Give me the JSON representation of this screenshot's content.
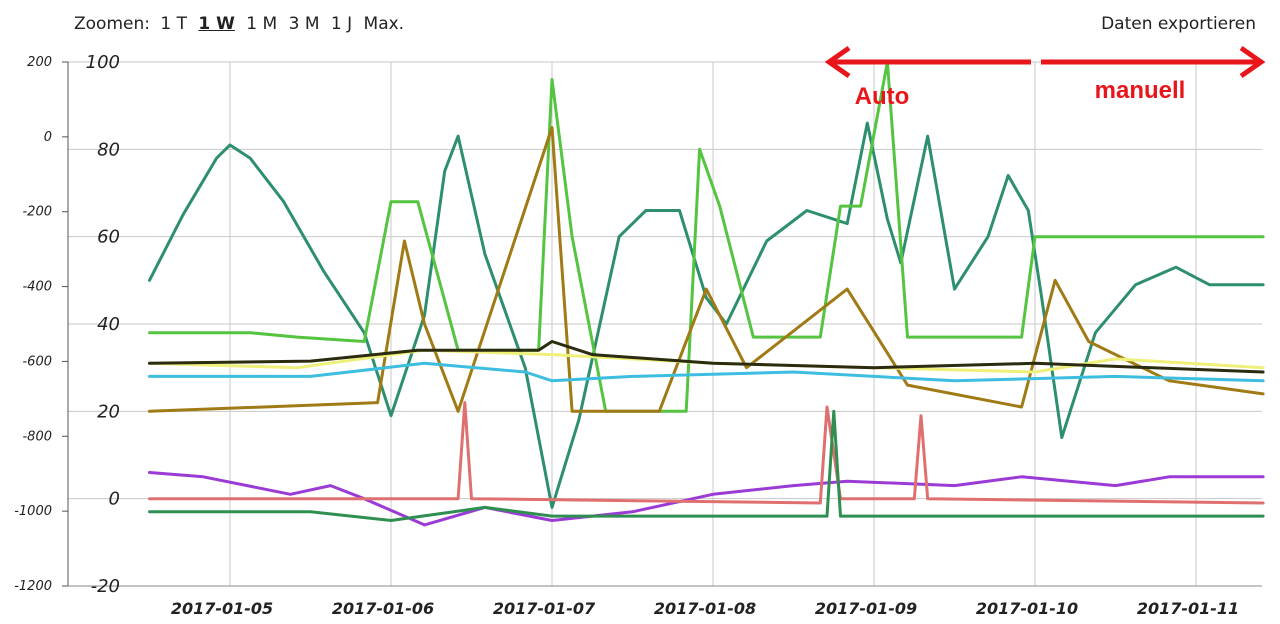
{
  "toolbar": {
    "zoom_label": "Zoomen:",
    "zoom_options": [
      "1 T",
      "1 W",
      "1 M",
      "3 M",
      "1 J",
      "Max."
    ],
    "active_zoom": "1 W",
    "export_label": "Daten exportieren"
  },
  "chart_data": {
    "type": "line",
    "grid": true,
    "left_axis": {
      "range": [
        -1200,
        200
      ],
      "ticks": [
        "200",
        "0",
        "-200",
        "-400",
        "-600",
        "-800",
        "-1000",
        "-1200"
      ]
    },
    "right_axis": {
      "range": [
        -20,
        100
      ],
      "ticks": [
        "100",
        "80",
        "60",
        "40",
        "20",
        "0",
        "-20"
      ]
    },
    "x_ticks": [
      "2017-01-05",
      "2017-01-06",
      "2017-01-07",
      "2017-01-08",
      "2017-01-09",
      "2017-01-10",
      "2017-01-11"
    ],
    "annotations": {
      "auto_label": "Auto",
      "manual_label": "manuell",
      "color": "#e8161b",
      "auto_range": [
        "2017-01-08T17:00",
        "2017-01-10T00:00"
      ],
      "manual_range": [
        "2017-01-10T00:00",
        "2017-01-11T10:00"
      ]
    },
    "series": [
      {
        "color": "#2e8f6e",
        "axis": "right",
        "points": [
          [
            "2017-01-04T12:00",
            50
          ],
          [
            "2017-01-04T17:00",
            65
          ],
          [
            "2017-01-04T22:00",
            78
          ],
          [
            "2017-01-05T00:00",
            81
          ],
          [
            "2017-01-05T03:00",
            78
          ],
          [
            "2017-01-05T08:00",
            68
          ],
          [
            "2017-01-05T14:00",
            52
          ],
          [
            "2017-01-05T20:00",
            38
          ],
          [
            "2017-01-06T00:00",
            19
          ],
          [
            "2017-01-06T05:00",
            42
          ],
          [
            "2017-01-06T08:00",
            75
          ],
          [
            "2017-01-06T10:00",
            83
          ],
          [
            "2017-01-06T14:00",
            56
          ],
          [
            "2017-01-06T20:00",
            30
          ],
          [
            "2017-01-07T00:00",
            -2
          ],
          [
            "2017-01-07T04:00",
            18
          ],
          [
            "2017-01-07T10:00",
            60
          ],
          [
            "2017-01-07T14:00",
            66
          ],
          [
            "2017-01-07T19:00",
            66
          ],
          [
            "2017-01-07T23:00",
            46
          ],
          [
            "2017-01-08T02:00",
            40
          ],
          [
            "2017-01-08T08:00",
            59
          ],
          [
            "2017-01-08T14:00",
            66
          ],
          [
            "2017-01-08T20:00",
            63
          ],
          [
            "2017-01-08T23:00",
            86
          ],
          [
            "2017-01-09T02:00",
            64
          ],
          [
            "2017-01-09T04:00",
            54
          ],
          [
            "2017-01-09T08:00",
            83
          ],
          [
            "2017-01-09T12:00",
            48
          ],
          [
            "2017-01-09T17:00",
            60
          ],
          [
            "2017-01-09T20:00",
            74
          ],
          [
            "2017-01-09T23:00",
            66
          ],
          [
            "2017-01-10T01:00",
            46
          ],
          [
            "2017-01-10T04:00",
            14
          ],
          [
            "2017-01-10T09:00",
            38
          ],
          [
            "2017-01-10T15:00",
            49
          ],
          [
            "2017-01-10T21:00",
            53
          ],
          [
            "2017-01-11T02:00",
            49
          ],
          [
            "2017-01-11T10:00",
            49
          ]
        ]
      },
      {
        "color": "#55c440",
        "axis": "right",
        "points": [
          [
            "2017-01-04T12:00",
            38
          ],
          [
            "2017-01-05T03:00",
            38
          ],
          [
            "2017-01-05T10:00",
            37
          ],
          [
            "2017-01-05T20:00",
            36
          ],
          [
            "2017-01-06T00:00",
            68
          ],
          [
            "2017-01-06T04:00",
            68
          ],
          [
            "2017-01-06T10:00",
            34
          ],
          [
            "2017-01-06T22:00",
            34
          ],
          [
            "2017-01-07T00:00",
            96
          ],
          [
            "2017-01-07T03:00",
            60
          ],
          [
            "2017-01-07T08:00",
            20
          ],
          [
            "2017-01-07T20:00",
            20
          ],
          [
            "2017-01-07T22:00",
            80
          ],
          [
            "2017-01-08T01:00",
            67
          ],
          [
            "2017-01-08T06:00",
            37
          ],
          [
            "2017-01-08T16:00",
            37
          ],
          [
            "2017-01-08T19:00",
            67
          ],
          [
            "2017-01-08T22:00",
            67
          ],
          [
            "2017-01-09T02:00",
            100
          ],
          [
            "2017-01-09T05:00",
            37
          ],
          [
            "2017-01-09T22:00",
            37
          ],
          [
            "2017-01-10T00:00",
            60
          ],
          [
            "2017-01-11T10:00",
            60
          ]
        ]
      },
      {
        "color": "#a07a14",
        "axis": "right",
        "points": [
          [
            "2017-01-04T12:00",
            20
          ],
          [
            "2017-01-05T22:00",
            22
          ],
          [
            "2017-01-06T02:00",
            59
          ],
          [
            "2017-01-06T05:00",
            40
          ],
          [
            "2017-01-06T10:00",
            20
          ],
          [
            "2017-01-07T00:00",
            85
          ],
          [
            "2017-01-07T03:00",
            20
          ],
          [
            "2017-01-07T16:00",
            20
          ],
          [
            "2017-01-07T23:00",
            48
          ],
          [
            "2017-01-08T05:00",
            30
          ],
          [
            "2017-01-08T20:00",
            48
          ],
          [
            "2017-01-09T05:00",
            26
          ],
          [
            "2017-01-09T22:00",
            21
          ],
          [
            "2017-01-10T03:00",
            50
          ],
          [
            "2017-01-10T08:00",
            36
          ],
          [
            "2017-01-10T20:00",
            27
          ],
          [
            "2017-01-11T10:00",
            24
          ]
        ]
      },
      {
        "color": "#eef07a",
        "axis": "right",
        "points": [
          [
            "2017-01-04T12:00",
            31
          ],
          [
            "2017-01-05T10:00",
            30
          ],
          [
            "2017-01-06T05:00",
            34
          ],
          [
            "2017-01-07T00:00",
            33
          ],
          [
            "2017-01-08T00:00",
            31
          ],
          [
            "2017-01-09T00:00",
            30
          ],
          [
            "2017-01-10T00:00",
            29
          ],
          [
            "2017-01-10T12:00",
            32
          ],
          [
            "2017-01-11T10:00",
            30
          ]
        ]
      },
      {
        "color": "#2b2b10",
        "axis": "right",
        "points": [
          [
            "2017-01-04T12:00",
            31
          ],
          [
            "2017-01-05T12:00",
            31.5
          ],
          [
            "2017-01-06T04:00",
            34
          ],
          [
            "2017-01-06T22:00",
            34
          ],
          [
            "2017-01-07T00:00",
            36
          ],
          [
            "2017-01-07T06:00",
            33
          ],
          [
            "2017-01-08T00:00",
            31
          ],
          [
            "2017-01-09T00:00",
            30
          ],
          [
            "2017-01-10T00:00",
            31
          ],
          [
            "2017-01-11T10:00",
            29
          ]
        ]
      },
      {
        "color": "#3dbde0",
        "axis": "right",
        "points": [
          [
            "2017-01-04T12:00",
            28
          ],
          [
            "2017-01-05T12:00",
            28
          ],
          [
            "2017-01-06T05:00",
            31
          ],
          [
            "2017-01-06T20:00",
            29
          ],
          [
            "2017-01-07T00:00",
            27
          ],
          [
            "2017-01-07T12:00",
            28
          ],
          [
            "2017-01-08T12:00",
            29
          ],
          [
            "2017-01-09T12:00",
            27
          ],
          [
            "2017-01-10T12:00",
            28
          ],
          [
            "2017-01-11T10:00",
            27
          ]
        ]
      },
      {
        "color": "#9b3bd6",
        "axis": "right",
        "points": [
          [
            "2017-01-04T12:00",
            6
          ],
          [
            "2017-01-04T20:00",
            5
          ],
          [
            "2017-01-05T09:00",
            1
          ],
          [
            "2017-01-05T15:00",
            3
          ],
          [
            "2017-01-05T20:00",
            0
          ],
          [
            "2017-01-06T05:00",
            -6
          ],
          [
            "2017-01-06T14:00",
            -2
          ],
          [
            "2017-01-07T00:00",
            -5
          ],
          [
            "2017-01-07T12:00",
            -3
          ],
          [
            "2017-01-08T00:00",
            1
          ],
          [
            "2017-01-08T12:00",
            3
          ],
          [
            "2017-01-08T20:00",
            4
          ],
          [
            "2017-01-09T12:00",
            3
          ],
          [
            "2017-01-09T22:00",
            5
          ],
          [
            "2017-01-10T12:00",
            3
          ],
          [
            "2017-01-10T20:00",
            5
          ],
          [
            "2017-01-11T10:00",
            5
          ]
        ]
      },
      {
        "color": "#e07070",
        "axis": "right",
        "points": [
          [
            "2017-01-04T12:00",
            0
          ],
          [
            "2017-01-06T10:00",
            0
          ],
          [
            "2017-01-06T11:00",
            22
          ],
          [
            "2017-01-06T12:00",
            0
          ],
          [
            "2017-01-08T16:00",
            -1
          ],
          [
            "2017-01-08T17:00",
            21
          ],
          [
            "2017-01-08T19:00",
            0
          ],
          [
            "2017-01-09T06:00",
            0
          ],
          [
            "2017-01-09T07:00",
            19
          ],
          [
            "2017-01-09T08:00",
            0
          ],
          [
            "2017-01-11T10:00",
            -1
          ]
        ]
      },
      {
        "color": "#2e8f50",
        "axis": "right",
        "points": [
          [
            "2017-01-04T12:00",
            -3
          ],
          [
            "2017-01-05T12:00",
            -3
          ],
          [
            "2017-01-06T00:00",
            -5
          ],
          [
            "2017-01-06T14:00",
            -2
          ],
          [
            "2017-01-07T00:00",
            -4
          ],
          [
            "2017-01-07T12:00",
            -4
          ],
          [
            "2017-01-08T12:00",
            -4
          ],
          [
            "2017-01-08T17:00",
            -4
          ],
          [
            "2017-01-08T18:00",
            20
          ],
          [
            "2017-01-08T19:00",
            -4
          ],
          [
            "2017-01-09T12:00",
            -4
          ],
          [
            "2017-01-11T10:00",
            -4
          ]
        ]
      }
    ]
  }
}
